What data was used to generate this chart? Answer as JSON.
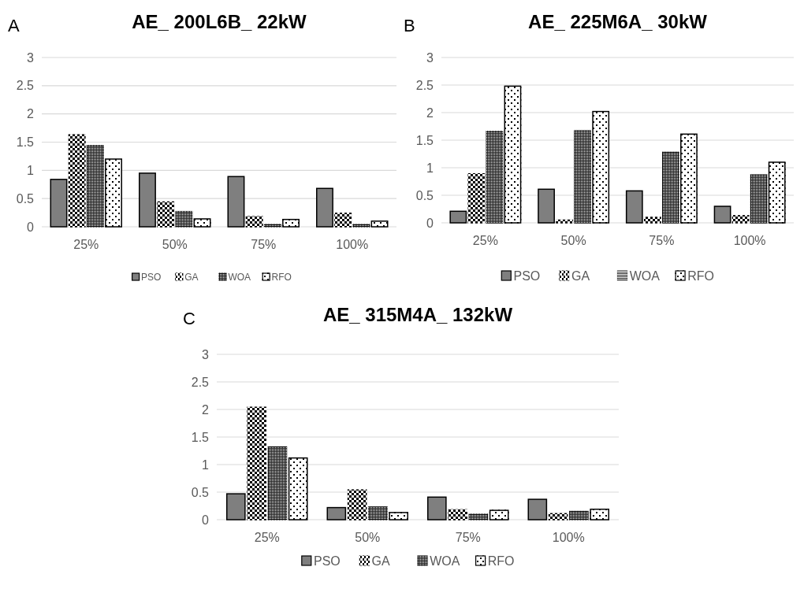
{
  "chart_data": [
    {
      "type": "bar",
      "title": "AE_ 200L6B_ 22kW",
      "annotations": [
        "A"
      ],
      "categories": [
        "25%",
        "50%",
        "75%",
        "100%"
      ],
      "ylim": [
        0,
        3
      ],
      "yticks": [
        0,
        0.5,
        1,
        1.5,
        2,
        2.5,
        3
      ],
      "grid": "y",
      "legend": "bottom",
      "series": [
        {
          "name": "PSO",
          "color": "#7f7f7f",
          "values": [
            0.84,
            0.95,
            0.89,
            0.68
          ]
        },
        {
          "name": "GA",
          "color": "#000000",
          "values": [
            1.63,
            0.44,
            0.18,
            0.24
          ]
        },
        {
          "name": "WOA",
          "color": "#262626",
          "values": [
            1.44,
            0.27,
            0.04,
            0.04
          ]
        },
        {
          "name": "RFO",
          "color": "#ffffff",
          "values": [
            1.2,
            0.14,
            0.13,
            0.1
          ]
        }
      ]
    },
    {
      "type": "bar",
      "title": "AE_ 225M6A_ 30kW",
      "annotations": [
        "B"
      ],
      "categories": [
        "25%",
        "50%",
        "75%",
        "100%"
      ],
      "ylim": [
        0,
        3
      ],
      "yticks": [
        0,
        0.5,
        1,
        1.5,
        2,
        2.5,
        3
      ],
      "grid": "y",
      "legend": "bottom",
      "series": [
        {
          "name": "PSO",
          "color": "#7f7f7f",
          "values": [
            0.21,
            0.61,
            0.58,
            0.3
          ]
        },
        {
          "name": "GA",
          "color": "#000000",
          "values": [
            0.89,
            0.05,
            0.1,
            0.13
          ]
        },
        {
          "name": "WOA",
          "color": "#262626",
          "values": [
            1.66,
            1.67,
            1.28,
            0.87
          ]
        },
        {
          "name": "RFO",
          "color": "#ffffff",
          "values": [
            2.48,
            2.02,
            1.61,
            1.1
          ]
        }
      ]
    },
    {
      "type": "bar",
      "title": "AE_ 315M4A_ 132kW",
      "annotations": [
        "C"
      ],
      "categories": [
        "25%",
        "50%",
        "75%",
        "100%"
      ],
      "ylim": [
        0,
        3
      ],
      "yticks": [
        0,
        0.5,
        1,
        1.5,
        2,
        2.5,
        3
      ],
      "grid": "y",
      "legend": "bottom",
      "series": [
        {
          "name": "PSO",
          "color": "#7f7f7f",
          "values": [
            0.47,
            0.22,
            0.41,
            0.37
          ]
        },
        {
          "name": "GA",
          "color": "#000000",
          "values": [
            2.04,
            0.54,
            0.18,
            0.11
          ]
        },
        {
          "name": "WOA",
          "color": "#262626",
          "values": [
            1.32,
            0.23,
            0.1,
            0.15
          ]
        },
        {
          "name": "RFO",
          "color": "#ffffff",
          "values": [
            1.12,
            0.13,
            0.17,
            0.19
          ]
        }
      ]
    }
  ]
}
